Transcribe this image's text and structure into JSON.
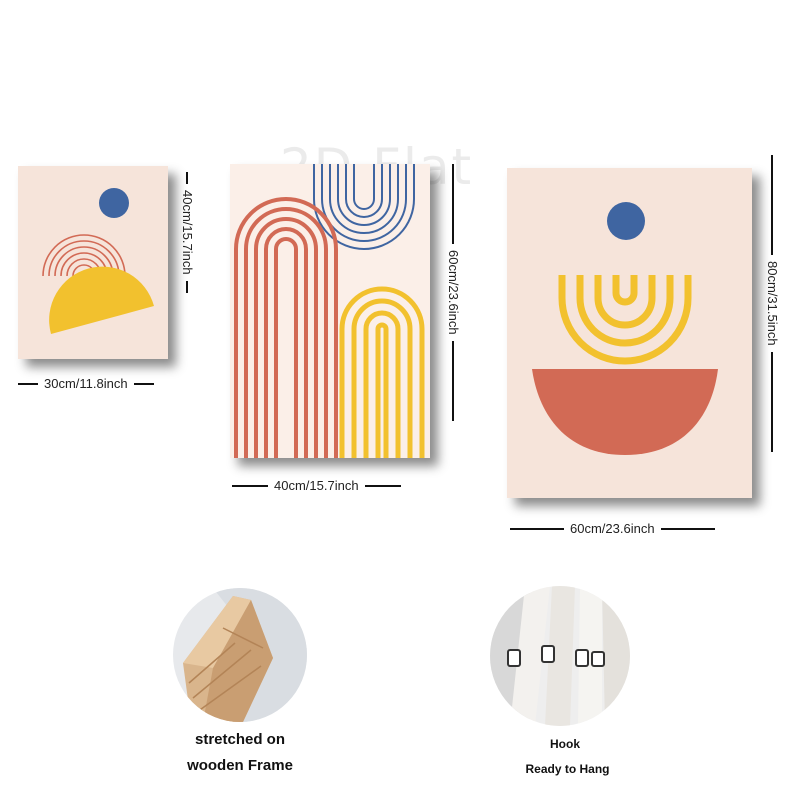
{
  "watermark": "2D Flat",
  "panels": {
    "small": {
      "width_label": "30cm/11.8inch",
      "height_label": "40cm/15.7inch"
    },
    "medium": {
      "width_label": "40cm/15.7inch",
      "height_label": "60cm/23.6inch"
    },
    "large": {
      "width_label": "60cm/23.6inch",
      "height_label": "80cm/31.5inch"
    }
  },
  "features": {
    "frame": {
      "line1": "stretched on",
      "line2": "wooden Frame"
    },
    "hook": {
      "line1": "Hook",
      "line2": "Ready to Hang"
    }
  },
  "colors": {
    "background": "#f6e4da",
    "blue": "#3f65a1",
    "terracotta": "#d26a55",
    "yellow": "#f2c12e"
  }
}
